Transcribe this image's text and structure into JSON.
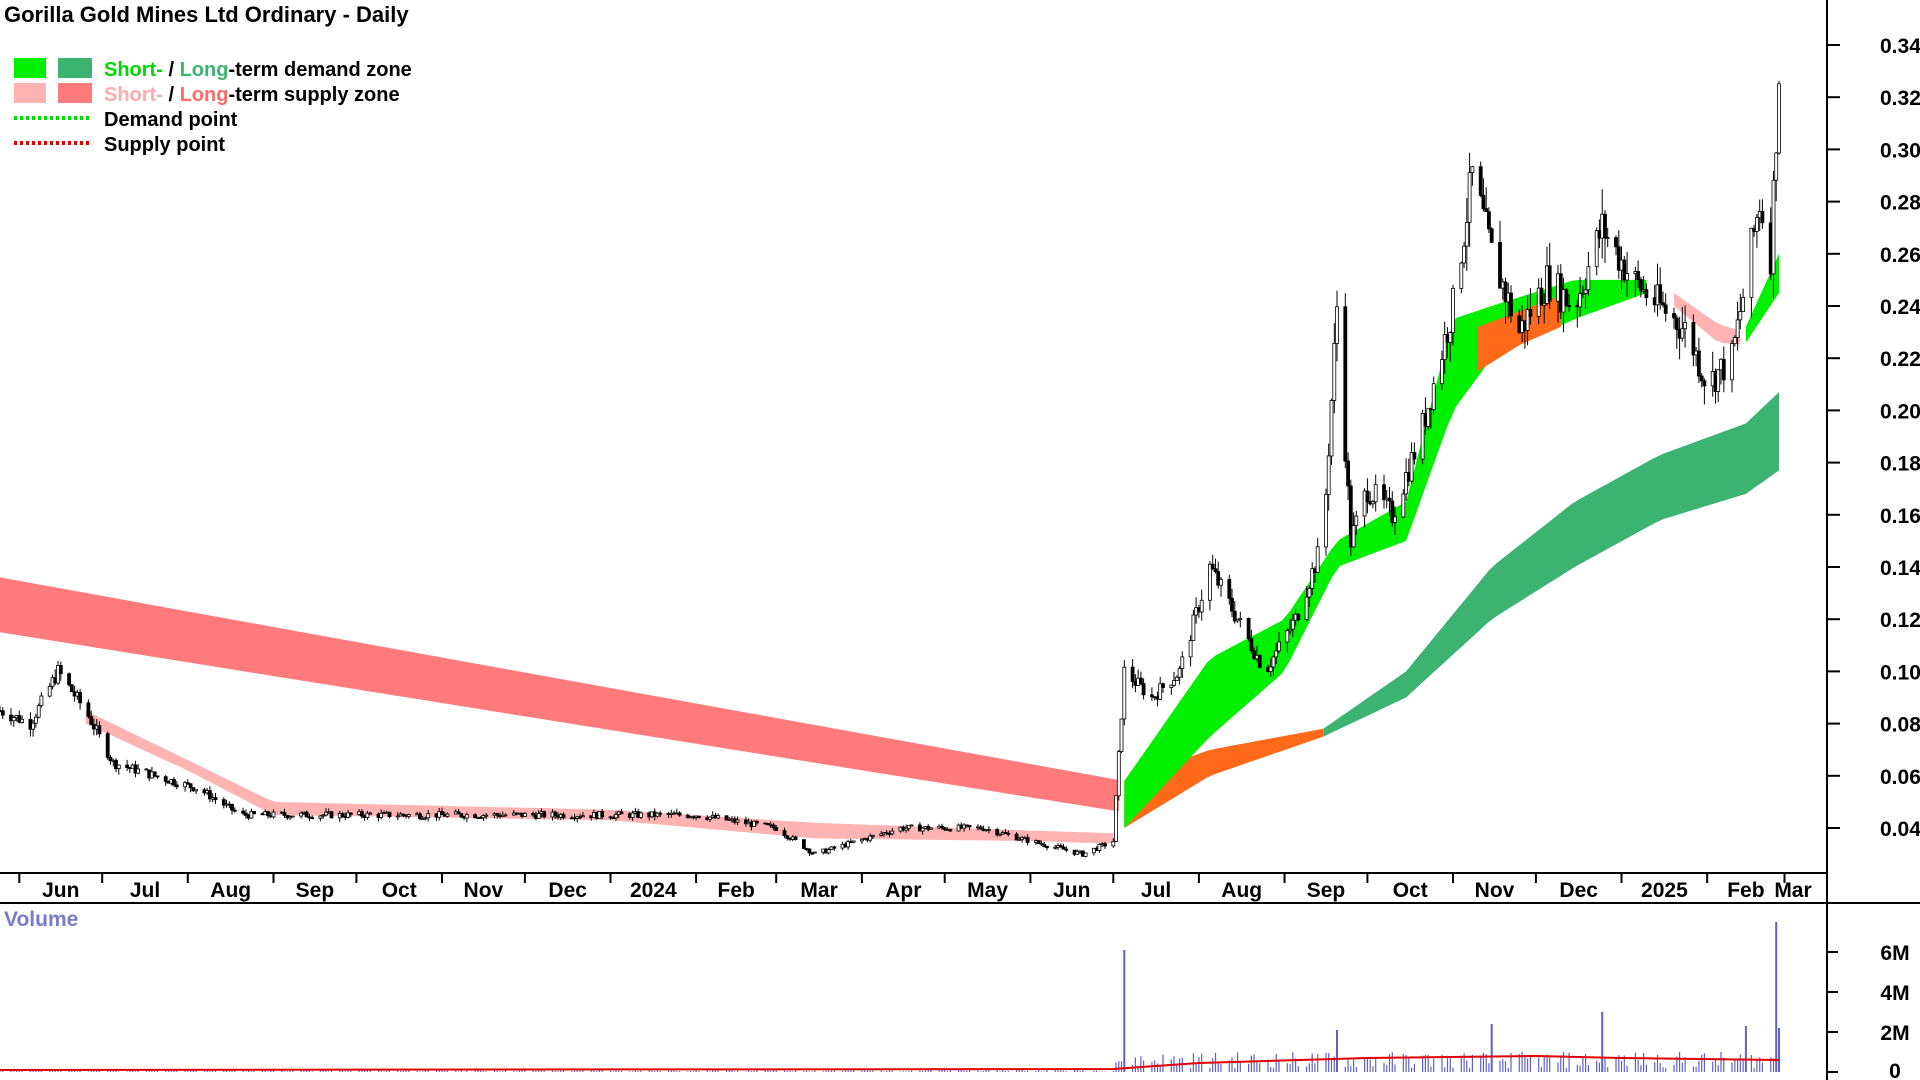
{
  "chart_title": "Gorilla Gold Mines Ltd Ordinary - Daily",
  "legend": {
    "row1": {
      "short": "Short-",
      "sep": " / ",
      "long": "Long",
      "rest": "-term demand zone"
    },
    "row2": {
      "short": "Short-",
      "sep": " / ",
      "long": "Long",
      "rest": "-term supply zone"
    },
    "row3": "Demand point",
    "row4": "Supply point"
  },
  "colors": {
    "short_demand": "#00f000",
    "long_demand": "#3cb371",
    "short_supply": "#ffb3b3",
    "long_supply": "#ff7b7b",
    "transition": "#ff6a1a",
    "demand_point": "#00e000",
    "supply_point": "#e00000",
    "volume_bar": "#6060c8",
    "volume_avg": "#e00000",
    "volume_label": "#7a7ad0"
  },
  "volume_label": "Volume",
  "chart_data": [
    {
      "type": "candlestick-with-zones",
      "title": "Gorilla Gold Mines Ltd Ordinary - Daily",
      "x_tick_labels": [
        "Jun",
        "Jul",
        "Aug",
        "Sep",
        "Oct",
        "Nov",
        "Dec",
        "2024",
        "Feb",
        "Mar",
        "Apr",
        "May",
        "Jun",
        "Jul",
        "Aug",
        "Sep",
        "Oct",
        "Nov",
        "Dec",
        "2025",
        "Feb",
        "Mar"
      ],
      "y_tick_labels": [
        "0.04",
        "0.06",
        "0.08",
        "0.10",
        "0.12",
        "0.14",
        "0.16",
        "0.18",
        "0.20",
        "0.22",
        "0.24",
        "0.26",
        "0.28",
        "0.30",
        "0.32",
        "0.34"
      ],
      "ylim": [
        0.025,
        0.36
      ],
      "y_axis_side": "right",
      "price_path": {
        "dates": [
          "2023-05-25",
          "2023-06-05",
          "2023-06-15",
          "2023-06-25",
          "2023-07-05",
          "2023-07-20",
          "2023-08-05",
          "2023-08-20",
          "2023-09-01",
          "2023-09-20",
          "2023-10-10",
          "2023-11-01",
          "2023-12-01",
          "2024-01-01",
          "2024-02-01",
          "2024-03-01",
          "2024-03-15",
          "2024-04-15",
          "2024-05-15",
          "2024-06-01",
          "2024-06-20",
          "2024-07-01",
          "2024-07-05",
          "2024-07-15",
          "2024-07-25",
          "2024-08-05",
          "2024-08-15",
          "2024-08-25",
          "2024-09-05",
          "2024-09-15",
          "2024-09-20",
          "2024-09-25",
          "2024-10-01",
          "2024-10-10",
          "2024-10-20",
          "2024-10-25",
          "2024-11-01",
          "2024-11-08",
          "2024-11-15",
          "2024-11-25",
          "2024-12-05",
          "2024-12-15",
          "2024-12-25",
          "2025-01-05",
          "2025-01-15",
          "2025-01-25",
          "2025-02-01",
          "2025-02-10",
          "2025-02-15",
          "2025-02-20",
          "2025-02-24",
          "2025-02-27"
        ],
        "close": [
          0.085,
          0.08,
          0.1,
          0.085,
          0.065,
          0.06,
          0.055,
          0.045,
          0.045,
          0.045,
          0.045,
          0.045,
          0.045,
          0.045,
          0.045,
          0.04,
          0.03,
          0.04,
          0.04,
          0.035,
          0.03,
          0.035,
          0.1,
          0.09,
          0.1,
          0.14,
          0.12,
          0.1,
          0.12,
          0.15,
          0.24,
          0.15,
          0.17,
          0.16,
          0.19,
          0.21,
          0.24,
          0.29,
          0.26,
          0.23,
          0.25,
          0.24,
          0.27,
          0.25,
          0.24,
          0.23,
          0.21,
          0.22,
          0.25,
          0.28,
          0.26,
          0.33
        ]
      },
      "zones": {
        "long_supply": {
          "dates": [
            "2023-05-25",
            "2024-07-05"
          ],
          "upper": [
            0.136,
            0.058
          ],
          "lower": [
            0.115,
            0.046
          ]
        },
        "long_demand": {
          "dates": [
            "2024-09-15",
            "2024-10-15",
            "2024-11-15",
            "2024-12-15",
            "2025-01-15",
            "2025-02-15",
            "2025-02-27"
          ],
          "upper": [
            0.078,
            0.1,
            0.14,
            0.165,
            0.183,
            0.195,
            0.207
          ],
          "lower": [
            0.075,
            0.09,
            0.12,
            0.14,
            0.158,
            0.168,
            0.177
          ]
        },
        "short_demand": {
          "dates": [
            "2024-07-05",
            "2024-08-05",
            "2024-09-01",
            "2024-09-20",
            "2024-10-15",
            "2024-11-01",
            "2024-11-15",
            "2024-12-15",
            "2025-01-10"
          ],
          "upper": [
            0.058,
            0.105,
            0.12,
            0.15,
            0.165,
            0.235,
            0.24,
            0.25,
            0.25
          ],
          "lower": [
            0.04,
            0.075,
            0.1,
            0.14,
            0.15,
            0.2,
            0.22,
            0.235,
            0.245
          ]
        },
        "short_supply": {
          "dates": [
            "2023-06-25",
            "2023-08-01",
            "2023-09-01",
            "2024-01-01",
            "2024-03-15",
            "2024-06-01",
            "2024-07-01",
            "2025-01-20",
            "2025-02-05",
            "2025-02-15"
          ],
          "upper": [
            0.085,
            0.066,
            0.05,
            0.047,
            0.042,
            0.039,
            0.038,
            0.245,
            0.233,
            0.23
          ],
          "lower": [
            0.08,
            0.062,
            0.045,
            0.043,
            0.036,
            0.035,
            0.034,
            0.24,
            0.226,
            0.225
          ]
        }
      },
      "volume": {
        "y_tick_labels": [
          "0",
          "2M",
          "4M",
          "6M"
        ],
        "ylim": [
          0,
          8000000
        ],
        "spikes": [
          {
            "date": "2024-07-05",
            "value": 6100000
          },
          {
            "date": "2024-09-20",
            "value": 2100000
          },
          {
            "date": "2024-11-15",
            "value": 2400000
          },
          {
            "date": "2024-12-25",
            "value": 3000000
          },
          {
            "date": "2025-02-15",
            "value": 2300000
          },
          {
            "date": "2025-02-26",
            "value": 7500000
          },
          {
            "date": "2025-02-27",
            "value": 2200000
          }
        ],
        "baseline": [
          {
            "from": "2023-05-25",
            "to": "2024-07-01",
            "value": 80000
          },
          {
            "from": "2024-07-02",
            "to": "2025-02-27",
            "value": 600000
          }
        ],
        "avg_line": {
          "dates": [
            "2023-05-25",
            "2024-07-01",
            "2024-08-01",
            "2024-10-01",
            "2024-12-01",
            "2025-01-01",
            "2025-02-27"
          ],
          "values": [
            100000,
            150000,
            450000,
            700000,
            800000,
            700000,
            600000
          ]
        }
      }
    }
  ]
}
